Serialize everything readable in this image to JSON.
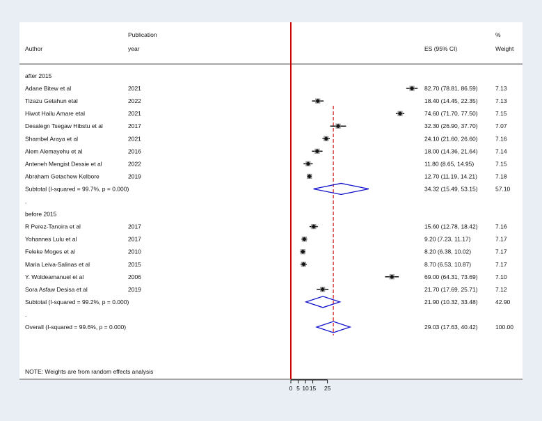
{
  "headers": {
    "author": "Author",
    "pub_line1": "Publication",
    "pub_line2": "year",
    "es": "ES (95% CI)",
    "pct": "%",
    "weight": "Weight"
  },
  "note": "NOTE: Weights are from random effects analysis",
  "chart_data": {
    "type": "forest",
    "xticks": [
      0,
      5,
      10,
      15,
      25
    ],
    "xlim": [
      0,
      90
    ],
    "null_line": 0,
    "overall_es": 29.03,
    "colors": {
      "null_line": "#cc0000",
      "overall_line": "#cc0000",
      "diamond": "#1010cc",
      "marker": "#111111"
    },
    "rows": [
      {
        "kind": "group",
        "label": "after 2015"
      },
      {
        "kind": "study",
        "author": "Adane Bitew et al",
        "year": "2021",
        "es": 82.7,
        "lo": 78.81,
        "hi": 86.59,
        "ci": "82.70 (78.81, 86.59)",
        "weight": "7.13"
      },
      {
        "kind": "study",
        "author": "Tizazu Getahun etal",
        "year": "2022",
        "es": 18.4,
        "lo": 14.45,
        "hi": 22.35,
        "ci": "18.40 (14.45, 22.35)",
        "weight": "7.13"
      },
      {
        "kind": "study",
        "author": "Hiwot Hailu Amare etal",
        "year": "2021",
        "es": 74.6,
        "lo": 71.7,
        "hi": 77.5,
        "ci": "74.60 (71.70, 77.50)",
        "weight": "7.15"
      },
      {
        "kind": "study",
        "author": "Desalegn Tsegaw Hibstu et al",
        "year": "2017",
        "es": 32.3,
        "lo": 26.9,
        "hi": 37.7,
        "ci": "32.30 (26.90, 37.70)",
        "weight": "7.07"
      },
      {
        "kind": "study",
        "author": "Shambel Araya et al",
        "year": "2021",
        "es": 24.1,
        "lo": 21.6,
        "hi": 26.6,
        "ci": "24.10 (21.60, 26.60)",
        "weight": "7.16"
      },
      {
        "kind": "study",
        "author": "Alem Alemayehu et al",
        "year": "2016",
        "es": 18.0,
        "lo": 14.36,
        "hi": 21.64,
        "ci": "18.00 (14.36, 21.64)",
        "weight": "7.14"
      },
      {
        "kind": "study",
        "author": "Anteneh Mengist Dessie et al",
        "year": "2022",
        "es": 11.8,
        "lo": 8.65,
        "hi": 14.95,
        "ci": "11.80 (8.65, 14.95)",
        "weight": "7.15"
      },
      {
        "kind": "study",
        "author": "Abraham Getachew Kelbore",
        "year": "2019",
        "es": 12.7,
        "lo": 11.19,
        "hi": 14.21,
        "ci": "12.70 (11.19, 14.21)",
        "weight": "7.18"
      },
      {
        "kind": "subtotal",
        "label": "Subtotal  (I-squared = 99.7%, p = 0.000)",
        "es": 34.32,
        "lo": 15.49,
        "hi": 53.15,
        "ci": "34.32 (15.49, 53.15)",
        "weight": "57.10"
      },
      {
        "kind": "dot",
        "label": "."
      },
      {
        "kind": "group",
        "label": "before 2015"
      },
      {
        "kind": "study",
        "author": "R Perez-Tanoira  et al",
        "year": "2017",
        "es": 15.6,
        "lo": 12.78,
        "hi": 18.42,
        "ci": "15.60 (12.78, 18.42)",
        "weight": "7.16"
      },
      {
        "kind": "study",
        "author": "Yohannes Lulu et al",
        "year": "2017",
        "es": 9.2,
        "lo": 7.23,
        "hi": 11.17,
        "ci": "9.20 (7.23, 11.17)",
        "weight": "7.17"
      },
      {
        "kind": "study",
        "author": "Feleke Moges et al",
        "year": "2010",
        "es": 8.2,
        "lo": 6.38,
        "hi": 10.02,
        "ci": "8.20 (6.38, 10.02)",
        "weight": "7.17"
      },
      {
        "kind": "study",
        "author": "Maria Leiva-Salinas et al",
        "year": "2015",
        "es": 8.7,
        "lo": 6.53,
        "hi": 10.87,
        "ci": "8.70 (6.53, 10.87)",
        "weight": "7.17"
      },
      {
        "kind": "study",
        "author": "Y. Woldeamanuel et al",
        "year": "2006",
        "es": 69.0,
        "lo": 64.31,
        "hi": 73.69,
        "ci": "69.00 (64.31, 73.69)",
        "weight": "7.10"
      },
      {
        "kind": "study",
        "author": "Sora Asfaw Desisa et al",
        "year": "2019",
        "es": 21.7,
        "lo": 17.69,
        "hi": 25.71,
        "ci": "21.70 (17.69, 25.71)",
        "weight": "7.12"
      },
      {
        "kind": "subtotal",
        "label": "Subtotal  (I-squared = 99.2%, p = 0.000)",
        "es": 21.9,
        "lo": 10.32,
        "hi": 33.48,
        "ci": "21.90 (10.32, 33.48)",
        "weight": "42.90"
      },
      {
        "kind": "dot",
        "label": "."
      },
      {
        "kind": "overall",
        "label": "Overall  (I-squared = 99.6%, p = 0.000)",
        "es": 29.03,
        "lo": 17.63,
        "hi": 40.42,
        "ci": "29.03 (17.63, 40.42)",
        "weight": "100.00"
      }
    ]
  }
}
